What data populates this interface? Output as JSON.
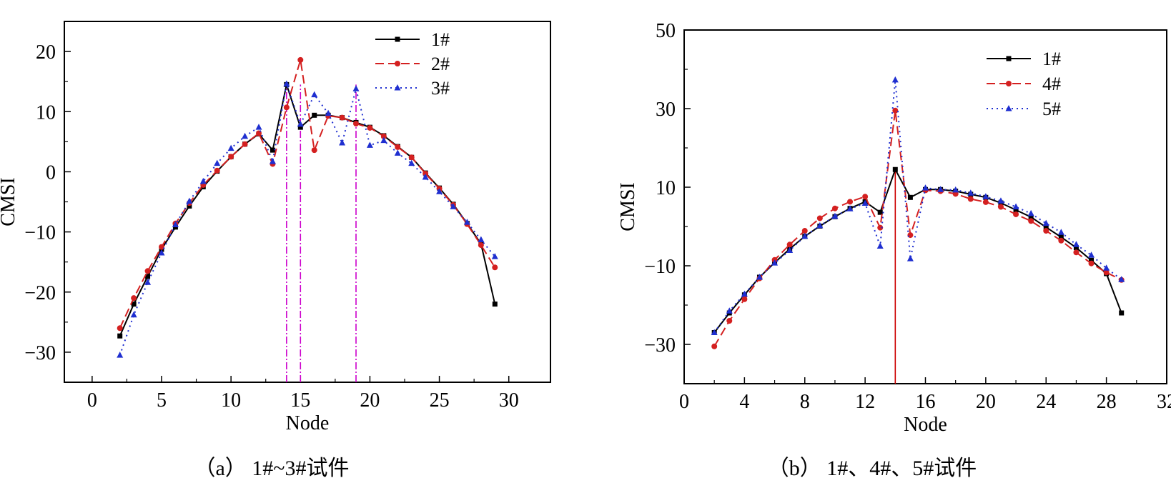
{
  "chart_data": [
    {
      "type": "line",
      "panel": "a",
      "caption": "（a）  1#~3#试件",
      "xlabel": "Node",
      "ylabel": "CMSI",
      "xlim": [
        -2,
        33
      ],
      "ylim": [
        -35,
        25
      ],
      "xticks": [
        0,
        5,
        10,
        15,
        20,
        25,
        30
      ],
      "yticks": [
        -30,
        -20,
        -10,
        0,
        10,
        20
      ],
      "legend_position": "top-right",
      "markers": [
        14,
        15,
        19
      ],
      "marker_color": "#cc00cc",
      "x": [
        2,
        3,
        4,
        5,
        6,
        7,
        8,
        9,
        10,
        11,
        12,
        13,
        14,
        15,
        16,
        17,
        18,
        19,
        20,
        21,
        22,
        23,
        24,
        25,
        26,
        27,
        28,
        29
      ],
      "series": [
        {
          "name": "1#",
          "color": "#000000",
          "marker": "square",
          "values": [
            -27.3,
            -22,
            -17.4,
            -12.9,
            -9.2,
            -5.7,
            -2.5,
            0.1,
            2.5,
            4.6,
            6.3,
            3.6,
            14.5,
            7.4,
            9.4,
            9.4,
            9.0,
            8.2,
            7.4,
            6.0,
            4.2,
            2.4,
            -0.2,
            -2.7,
            -5.4,
            -8.6,
            -12.0,
            -22.0
          ]
        },
        {
          "name": "2#",
          "color": "#d42020",
          "marker": "circle",
          "values": [
            -26,
            -21,
            -16.5,
            -12.5,
            -8.6,
            -5.2,
            -2.2,
            0.2,
            2.5,
            4.6,
            6.4,
            1.3,
            10.7,
            18.6,
            3.6,
            9.3,
            9.0,
            8.0,
            7.3,
            5.9,
            4.1,
            2.4,
            -0.3,
            -2.8,
            -5.5,
            -8.7,
            -12.2,
            -15.9
          ]
        },
        {
          "name": "3#",
          "color": "#1f2fd0",
          "marker": "triangle",
          "values": [
            -30.5,
            -23.8,
            -18.4,
            -13.5,
            -8.8,
            -4.9,
            -1.6,
            1.4,
            3.9,
            5.9,
            7.4,
            1.7,
            14.6,
            7.9,
            12.8,
            9.7,
            4.8,
            13.8,
            4.4,
            5.2,
            3.1,
            1.4,
            -0.9,
            -3.3,
            -5.8,
            -8.4,
            -11.3,
            -14.1
          ]
        }
      ]
    },
    {
      "type": "line",
      "panel": "b",
      "caption": "（b）  1#、4#、5#试件",
      "xlabel": "Node",
      "ylabel": "CMSI",
      "xlim": [
        0,
        32
      ],
      "ylim": [
        -40,
        50
      ],
      "xticks": [
        0,
        4,
        8,
        12,
        16,
        20,
        24,
        28,
        32
      ],
      "yticks": [
        -30,
        -10,
        10,
        30,
        50
      ],
      "legend_position": "top-right",
      "markers": [
        14
      ],
      "marker_color": "#cc0000",
      "x": [
        2,
        3,
        4,
        5,
        6,
        7,
        8,
        9,
        10,
        11,
        12,
        13,
        14,
        15,
        16,
        17,
        18,
        19,
        20,
        21,
        22,
        23,
        24,
        25,
        26,
        27,
        28,
        29
      ],
      "series": [
        {
          "name": "1#",
          "color": "#000000",
          "marker": "square",
          "values": [
            -27,
            -22,
            -17.4,
            -12.9,
            -9.2,
            -5.7,
            -2.5,
            0.1,
            2.5,
            4.6,
            6.3,
            3.6,
            14.5,
            7.4,
            9.4,
            9.4,
            9.0,
            8.2,
            7.4,
            6.0,
            4.2,
            2.4,
            -0.2,
            -2.7,
            -5.4,
            -8.6,
            -12.0,
            -22.0
          ]
        },
        {
          "name": "4#",
          "color": "#d42020",
          "marker": "circle",
          "values": [
            -30.5,
            -24,
            -18.5,
            -13.2,
            -8.5,
            -4.6,
            -1.1,
            2.1,
            4.6,
            6.3,
            7.6,
            -0.3,
            29.5,
            -2.2,
            9.2,
            9.0,
            8.3,
            7.0,
            6.2,
            5.0,
            3.1,
            1.4,
            -1.1,
            -3.6,
            -6.6,
            -9.4,
            -11.7,
            -13.6
          ]
        },
        {
          "name": "5#",
          "color": "#1f2fd0",
          "marker": "triangle",
          "values": [
            -27,
            -21.5,
            -17.2,
            -12.9,
            -9.3,
            -6.1,
            -2.5,
            0.2,
            2.6,
            4.5,
            5.9,
            -5.0,
            37.3,
            -8.2,
            9.8,
            9.4,
            9.3,
            8.5,
            7.6,
            6.5,
            5.0,
            3.3,
            0.8,
            -1.5,
            -4.6,
            -7.3,
            -10.6,
            -13.5
          ]
        }
      ]
    }
  ]
}
